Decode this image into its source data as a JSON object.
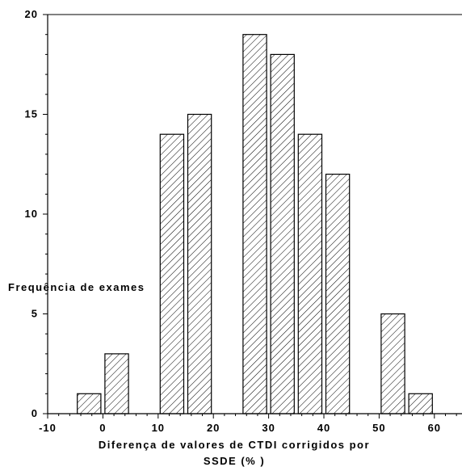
{
  "chart_data": {
    "type": "bar",
    "xlabel_line1": "Diferença de valores de CTDI corrigidos por",
    "xlabel_line2": "SSDE (% )",
    "ylabel": "Frequência de exames",
    "xlim": [
      -10,
      65
    ],
    "ylim": [
      0,
      20
    ],
    "x_ticks": [
      -10,
      0,
      10,
      20,
      30,
      40,
      50,
      60
    ],
    "y_ticks": [
      0,
      5,
      10,
      15,
      20
    ],
    "bin_width": 5,
    "bars": [
      {
        "x": -5,
        "value": 1
      },
      {
        "x": 0,
        "value": 3
      },
      {
        "x": 10,
        "value": 14
      },
      {
        "x": 15,
        "value": 15
      },
      {
        "x": 25,
        "value": 19
      },
      {
        "x": 30,
        "value": 18
      },
      {
        "x": 35,
        "value": 14
      },
      {
        "x": 40,
        "value": 12
      },
      {
        "x": 50,
        "value": 5
      },
      {
        "x": 55,
        "value": 1
      }
    ],
    "bar_fill": "hatched",
    "bar_color": "#000000",
    "grid": false,
    "legend": "none"
  }
}
